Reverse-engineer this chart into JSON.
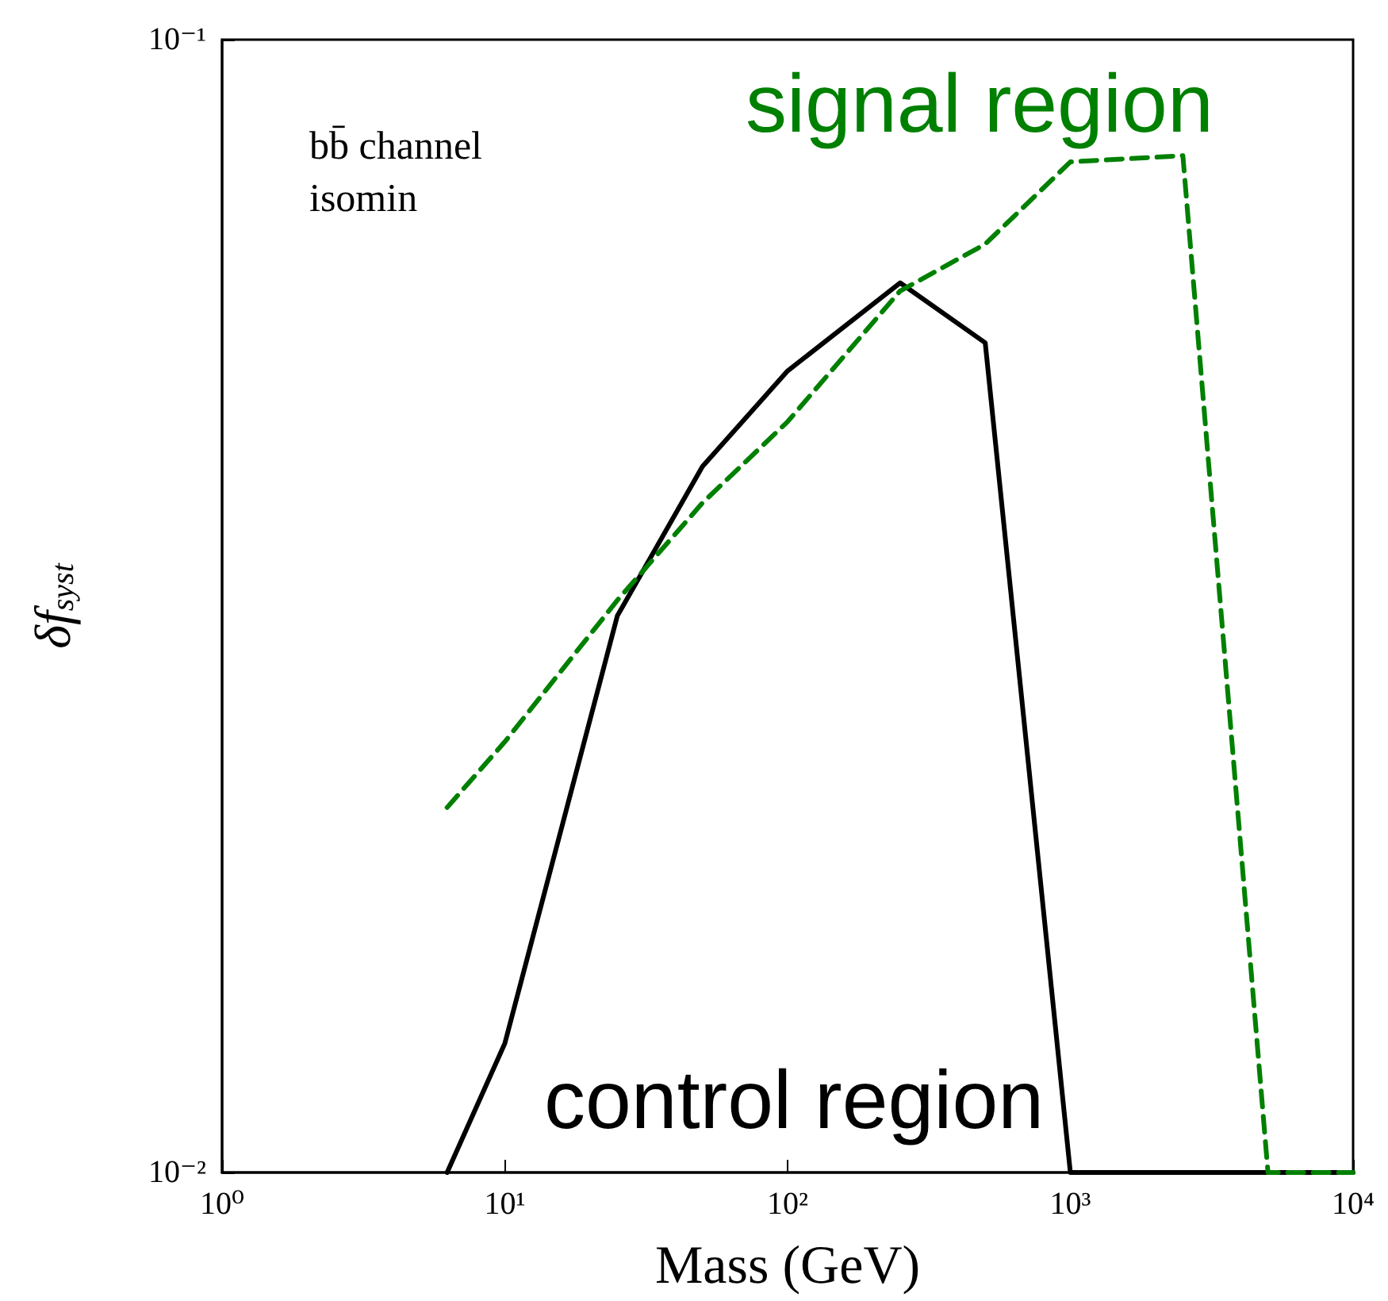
{
  "chart_data": {
    "type": "line",
    "xlabel": "Mass (GeV)",
    "ylabel": "δf$_{syst}$",
    "log": "xy",
    "xlim": [
      1,
      10000
    ],
    "ylim": [
      0.01,
      0.1
    ],
    "xticks": [
      {
        "value": 1,
        "label": "10⁰"
      },
      {
        "value": 10,
        "label": "10¹"
      },
      {
        "value": 100,
        "label": "10²"
      },
      {
        "value": 1000,
        "label": "10³"
      },
      {
        "value": 10000,
        "label": "10⁴"
      }
    ],
    "yticks": [
      {
        "value": 0.01,
        "label": "10⁻²"
      },
      {
        "value": 0.1,
        "label": "10⁻¹"
      }
    ],
    "grid": false,
    "legend": false,
    "marker": "none",
    "annotations": [
      "bb̄ channel",
      "isomin"
    ],
    "series": [
      {
        "name": "control region",
        "color": "#000000",
        "line_style": "solid",
        "x": [
          6.25,
          10,
          25,
          50,
          100,
          250,
          500,
          1000,
          10000
        ],
        "values": [
          0.01,
          0.013,
          0.031,
          0.042,
          0.051,
          0.061,
          0.054,
          0.01,
          0.01
        ]
      },
      {
        "name": "signal region",
        "color": "#008000",
        "line_style": "dashed",
        "x": [
          6.25,
          10,
          25,
          50,
          100,
          250,
          500,
          1000,
          2500,
          5000,
          10000
        ],
        "values": [
          0.021,
          0.024,
          0.032,
          0.039,
          0.046,
          0.06,
          0.066,
          0.078,
          0.079,
          0.01,
          0.01
        ]
      }
    ]
  }
}
